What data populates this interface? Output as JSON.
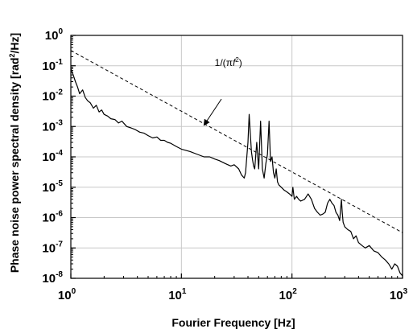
{
  "chart_data": {
    "type": "line",
    "xscale": "log",
    "yscale": "log",
    "xlim": [
      1,
      1000
    ],
    "ylim": [
      1e-08,
      1
    ],
    "grid": true,
    "xlabel": "Fourier Frequency [Hz]",
    "ylabel": "Phase noise power spectral density [rad²/Hz]",
    "ylabel_parts": {
      "main": "Phase noise power spectral density [rad",
      "sup": "2",
      "tail": "/Hz]"
    },
    "x_ticks": [
      {
        "value": 1,
        "base": "10",
        "exp": "0"
      },
      {
        "value": 10,
        "base": "10",
        "exp": "1"
      },
      {
        "value": 100,
        "base": "10",
        "exp": "2"
      },
      {
        "value": 1000,
        "base": "10",
        "exp": "3"
      }
    ],
    "y_ticks": [
      {
        "value": 1,
        "base": "10",
        "exp": "0"
      },
      {
        "value": 0.1,
        "base": "10",
        "exp": "-1"
      },
      {
        "value": 0.01,
        "base": "10",
        "exp": "-2"
      },
      {
        "value": 0.001,
        "base": "10",
        "exp": "-3"
      },
      {
        "value": 0.0001,
        "base": "10",
        "exp": "-4"
      },
      {
        "value": 1e-05,
        "base": "10",
        "exp": "-5"
      },
      {
        "value": 1e-06,
        "base": "10",
        "exp": "-6"
      },
      {
        "value": 1e-07,
        "base": "10",
        "exp": "-7"
      },
      {
        "value": 1e-08,
        "base": "10",
        "exp": "-8"
      }
    ],
    "series": [
      {
        "style": "solid",
        "color": "#000000",
        "x": [
          1,
          1.05,
          1.1,
          1.15,
          1.2,
          1.28,
          1.35,
          1.42,
          1.5,
          1.6,
          1.7,
          1.8,
          1.9,
          2.0,
          2.15,
          2.3,
          2.5,
          2.7,
          2.9,
          3.2,
          3.5,
          3.8,
          4.2,
          4.6,
          5.0,
          5.5,
          6.0,
          6.5,
          7.0,
          7.5,
          8.0,
          9.0,
          10,
          12,
          14,
          16,
          18,
          20,
          22,
          25,
          28,
          30,
          33,
          35,
          37,
          38,
          40,
          41,
          42,
          43,
          44,
          45,
          46,
          48,
          50,
          52,
          54,
          56,
          58,
          60,
          62,
          64,
          66,
          68,
          70,
          72,
          74,
          76,
          80,
          85,
          90,
          95,
          100,
          102,
          105,
          110,
          115,
          120,
          130,
          140,
          150,
          160,
          170,
          180,
          190,
          200,
          210,
          220,
          230,
          240,
          250,
          260,
          270,
          280,
          285,
          290,
          300,
          320,
          340,
          360,
          380,
          400,
          430,
          460,
          500,
          550,
          600,
          650,
          700,
          750,
          800,
          850,
          900,
          950,
          1000
        ],
        "y": [
          0.08,
          0.05,
          0.03,
          0.02,
          0.012,
          0.016,
          0.009,
          0.007,
          0.006,
          0.004,
          0.005,
          0.003,
          0.0035,
          0.0025,
          0.0022,
          0.0018,
          0.0017,
          0.0013,
          0.0015,
          0.001,
          0.0009,
          0.0008,
          0.00065,
          0.0006,
          0.0005,
          0.00042,
          0.00045,
          0.00035,
          0.00035,
          0.0003,
          0.00028,
          0.00022,
          0.00018,
          0.00015,
          0.00012,
          0.0001,
          0.0001,
          8.5e-05,
          7.5e-05,
          6e-05,
          5e-05,
          5.5e-05,
          4e-05,
          2.5e-05,
          2e-05,
          3e-05,
          0.0003,
          0.0025,
          0.0006,
          0.00015,
          8e-05,
          5e-05,
          4e-05,
          0.0003,
          4e-05,
          0.0015,
          4e-05,
          2e-05,
          6e-05,
          0.00012,
          0.0015,
          7e-05,
          0.0001,
          3e-05,
          2e-05,
          4e-05,
          1.5e-05,
          1.2e-05,
          1e-05,
          8e-06,
          7e-06,
          6e-06,
          5e-06,
          1e-05,
          4e-06,
          5e-06,
          4e-06,
          3.5e-06,
          4e-06,
          6e-06,
          4e-06,
          2e-06,
          1.5e-06,
          1.2e-06,
          1.3e-06,
          1.5e-06,
          3e-06,
          4e-06,
          3e-06,
          2.5e-06,
          1.5e-06,
          1.2e-06,
          8e-07,
          4e-06,
          1.5e-06,
          7e-07,
          5e-07,
          4e-07,
          3.5e-07,
          2e-07,
          2.5e-07,
          1.5e-07,
          1.2e-07,
          1e-07,
          1.2e-07,
          8e-08,
          7e-08,
          5e-08,
          4e-08,
          3e-08,
          2e-08,
          3e-08,
          2.5e-08,
          1.5e-08,
          1.2e-08
        ]
      },
      {
        "style": "dashed",
        "color": "#000000",
        "x": [
          1,
          1000
        ],
        "y": [
          0.318,
          3.18e-07
        ]
      }
    ],
    "annotations": [
      {
        "text_parts": {
          "pre": "1/(",
          "greek": "π",
          "var": "f",
          "sup": "2",
          "post": ")"
        },
        "text_x": 20,
        "text_y": 0.1,
        "arrow_from_x": 23,
        "arrow_from_y": 0.008,
        "arrow_to_x": 16,
        "arrow_to_y": 0.0011
      }
    ]
  }
}
